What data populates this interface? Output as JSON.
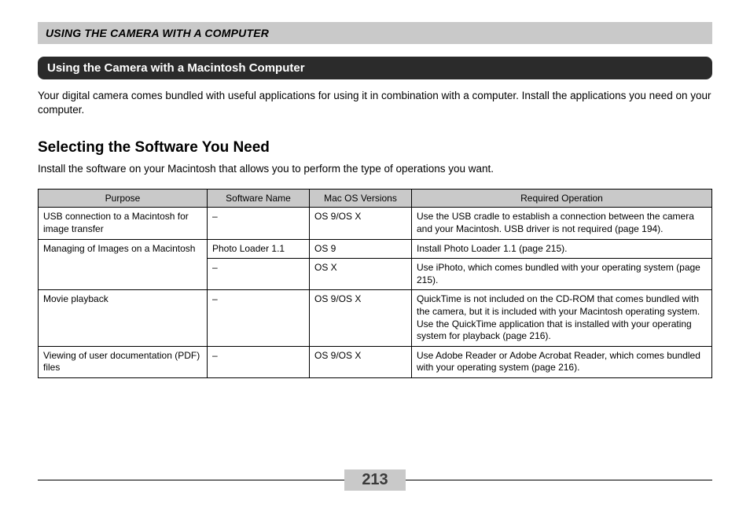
{
  "section_header": "USING THE CAMERA WITH A COMPUTER",
  "title_bar": "Using the Camera with a Macintosh Computer",
  "intro": "Your digital camera comes bundled with useful applications for using it in combination with a computer. Install the applications you need on your computer.",
  "subheading": "Selecting the Software You Need",
  "subintro": "Install the software on your Macintosh that allows you to perform the type of operations you want.",
  "table": {
    "headers": {
      "purpose": "Purpose",
      "software": "Software Name",
      "os": "Mac OS Versions",
      "required": "Required Operation"
    },
    "rows": {
      "r1": {
        "purpose": "USB connection to a Macintosh for image transfer",
        "software": "–",
        "os": "OS 9/OS X",
        "required": "Use the USB cradle to establish a connection between the camera and your Macintosh. USB driver is not required (page 194)."
      },
      "r2": {
        "purpose": "Managing of Images on a Macintosh",
        "software": "Photo Loader 1.1",
        "os": "OS 9",
        "required": "Install Photo Loader 1.1 (page 215)."
      },
      "r3": {
        "software": "–",
        "os": "OS X",
        "required": "Use iPhoto, which comes bundled with your operating system (page 215)."
      },
      "r4": {
        "purpose": "Movie playback",
        "software": "–",
        "os": "OS 9/OS X",
        "required": "QuickTime is not included on the CD-ROM that comes bundled with the camera, but it is included with your Macintosh operating system. Use the QuickTime application that is installed with your operating system for playback (page 216)."
      },
      "r5": {
        "purpose": "Viewing of user documentation (PDF) files",
        "software": "–",
        "os": "OS 9/OS X",
        "required": "Use Adobe Reader or Adobe Acrobat Reader, which comes bundled with your operating system (page 216)."
      }
    }
  },
  "page_number": "213",
  "colors": {
    "header_bg": "#c9c9c9",
    "title_bg": "#2b2b2b",
    "title_fg": "#ffffff",
    "page_bg": "#ffffff",
    "text": "#000000",
    "pagenum_fg": "#3a3a3a"
  }
}
